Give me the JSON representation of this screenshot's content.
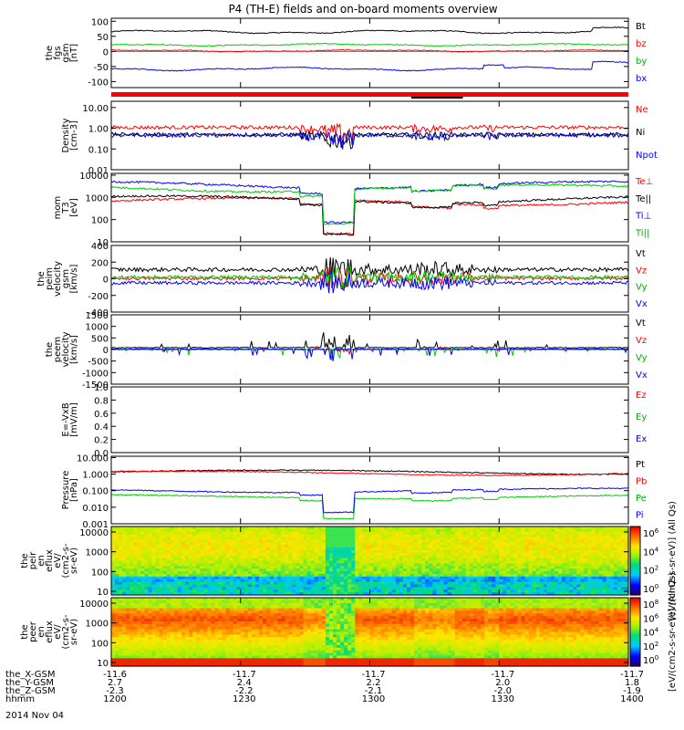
{
  "title": "P4 (TH-E) fields and on-board moments overview",
  "date_label": "2014 Nov 04",
  "chart_data": [
    {
      "type": "line",
      "panel": "fgs",
      "ylabel": [
        "the",
        "fgs",
        "gsm",
        "[nT]"
      ],
      "ylim": [
        -120,
        110
      ],
      "yticks": [
        100,
        50,
        0,
        -50,
        -100
      ],
      "series": [
        {
          "name": "Bt",
          "color": "#000000",
          "base": 65,
          "amp": 8
        },
        {
          "name": "bz",
          "color": "#ff0000",
          "base": 2,
          "amp": 4
        },
        {
          "name": "by",
          "color": "#00cc00",
          "base": 22,
          "amp": 5
        },
        {
          "name": "bx",
          "color": "#0000ff",
          "base": -58,
          "amp": 8
        }
      ]
    },
    {
      "type": "line",
      "panel": "density",
      "ylabel": [
        "Density",
        "[cm-3]"
      ],
      "log": true,
      "ylim": [
        0.01,
        20
      ],
      "yticks": [
        "10.00",
        "1.00",
        "0.10",
        "0.01"
      ],
      "series": [
        {
          "name": "Ne",
          "color": "#ff0000",
          "base": 1.1
        },
        {
          "name": "Ni",
          "color": "#000000",
          "base": 0.5
        },
        {
          "name": "Npot",
          "color": "#0000ff",
          "base": 0.45
        }
      ]
    },
    {
      "type": "line",
      "panel": "mom_temp",
      "ylabel": [
        "mom",
        "T3",
        "[eV]"
      ],
      "log": true,
      "ylim": [
        10,
        12000
      ],
      "yticks": [
        "10000",
        "1000",
        "100",
        "10"
      ],
      "series": [
        {
          "name": "Te⊥",
          "color": "#ff0000",
          "base": 800
        },
        {
          "name": "Te||",
          "color": "#000000",
          "base": 1000
        },
        {
          "name": "Ti⊥",
          "color": "#0000ff",
          "base": 4500
        },
        {
          "name": "Ti||",
          "color": "#00cc00",
          "base": 3200
        }
      ]
    },
    {
      "type": "line",
      "panel": "peim_velocity",
      "ylabel": [
        "the",
        "peim",
        "velocity",
        "gsm",
        "[km/s]"
      ],
      "ylim": [
        -400,
        400
      ],
      "yticks": [
        "400",
        "200",
        "0",
        "-200",
        "-400"
      ],
      "series": [
        {
          "name": "Vt",
          "color": "#000000",
          "base": 80
        },
        {
          "name": "Vz",
          "color": "#ff0000",
          "base": 5
        },
        {
          "name": "Vy",
          "color": "#00cc00",
          "base": 20
        },
        {
          "name": "Vx",
          "color": "#0000ff",
          "base": -50
        }
      ]
    },
    {
      "type": "line",
      "panel": "peem_velocity",
      "ylabel": [
        "the",
        "peem",
        "velocity",
        "[km/s]"
      ],
      "ylim": [
        -1500,
        1500
      ],
      "yticks": [
        "1500",
        "1000",
        "500",
        "0",
        "-500",
        "-1000",
        "-1500"
      ],
      "series": [
        {
          "name": "Vt",
          "color": "#000000"
        },
        {
          "name": "Vz",
          "color": "#ff0000"
        },
        {
          "name": "Vy",
          "color": "#00cc00"
        },
        {
          "name": "Vx",
          "color": "#0000ff"
        }
      ]
    },
    {
      "type": "line",
      "panel": "efield",
      "ylabel": [
        "E=-VxB",
        "[mV/m]"
      ],
      "ylim": [
        0,
        1
      ],
      "yticks": [
        "1.0",
        "0.8",
        "0.6",
        "0.4",
        "0.2",
        "0.0"
      ],
      "series": [
        {
          "name": "Ez",
          "color": "#ff0000"
        },
        {
          "name": "Ey",
          "color": "#00cc00"
        },
        {
          "name": "Ex",
          "color": "#0000ff"
        }
      ]
    },
    {
      "type": "line",
      "panel": "pressure",
      "ylabel": [
        "Pressure",
        "[nPa]"
      ],
      "log": true,
      "ylim": [
        0.001,
        12
      ],
      "yticks": [
        "10.000",
        "1.000",
        "0.100",
        "0.010",
        "0.001"
      ],
      "series": [
        {
          "name": "Pt",
          "color": "#000000",
          "base": 1.5
        },
        {
          "name": "Pb",
          "color": "#ff0000",
          "base": 1.3
        },
        {
          "name": "Pe",
          "color": "#00cc00",
          "base": 0.05
        },
        {
          "name": "Pi",
          "color": "#0000ff",
          "base": 0.12
        }
      ]
    },
    {
      "type": "heatmap",
      "panel": "peir_eflux",
      "ylabel": [
        "the",
        "peir",
        "en",
        "eflux",
        "eV/",
        "(cm2-s-",
        "sr-eV)"
      ],
      "yticks": [
        "10000",
        "1000",
        "100",
        "10"
      ]
    },
    {
      "type": "heatmap",
      "panel": "peer_eflux",
      "ylabel": [
        "the",
        "peer",
        "en",
        "eflux",
        "eV/",
        "(cm2-s-",
        "sr-eV)"
      ],
      "yticks": [
        "10000",
        "1000",
        "100",
        "10"
      ]
    }
  ],
  "colorbars": [
    {
      "label": "[eV/(cm2-s-sr-eV)] (All Qs)",
      "ticks": [
        "10^6",
        "10^4",
        "10^2",
        "10^0"
      ]
    },
    {
      "label": "[eV/(cm2-s-sr-eV)] (All Qs)",
      "ticks": [
        "10^8",
        "10^6",
        "10^4",
        "10^2",
        "10^0"
      ]
    }
  ],
  "xaxis": {
    "row_labels": [
      "the_X-GSM",
      "the_Y-GSM",
      "the_Z-GSM",
      "hhmm"
    ],
    "columns": [
      [
        "-11.6",
        "2.7",
        "-2.3",
        "1200"
      ],
      [
        "-11.7",
        "2.4",
        "-2.2",
        "1230"
      ],
      [
        "-11.7",
        "2.2",
        "-2.1",
        "1300"
      ],
      [
        "-11.7",
        "2.0",
        "-2.0",
        "1330"
      ],
      [
        "-11.7",
        "1.8",
        "-1.9",
        "1400"
      ]
    ]
  }
}
